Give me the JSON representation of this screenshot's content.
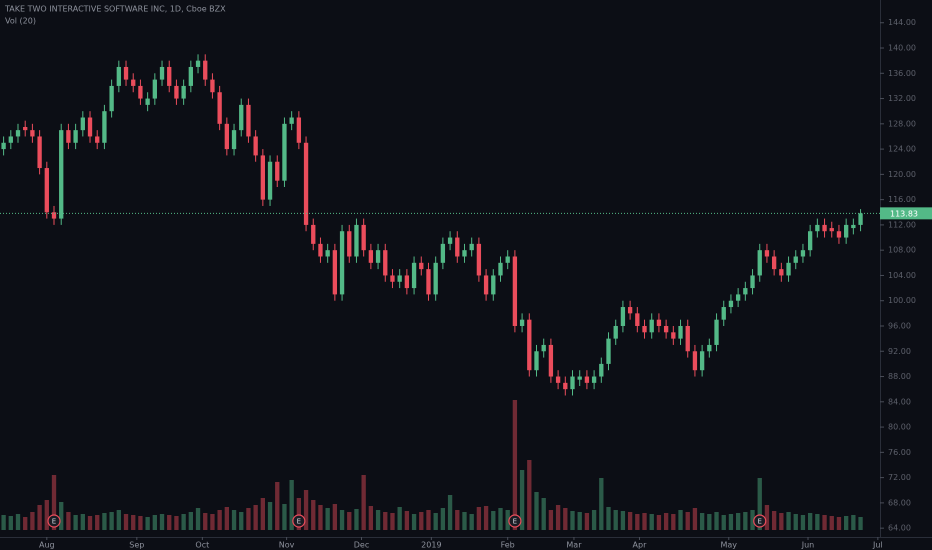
{
  "chart_data": {
    "type": "candlestick",
    "title": "TAKE TWO INTERACTIVE SOFTWARE INC, 1D, Cboe BZX",
    "volume_label": "Vol (20)",
    "up_color": "#53b987",
    "down_color": "#eb4d5c",
    "x": [
      0,
      1,
      2,
      3,
      4,
      5,
      6,
      7,
      8,
      9,
      10,
      11,
      12,
      13,
      14,
      15,
      16,
      17,
      18,
      19,
      20,
      21,
      22,
      23,
      24,
      25,
      26,
      27,
      28,
      29,
      30,
      31,
      32,
      33,
      34,
      35,
      36,
      37,
      38,
      39,
      40,
      41,
      42,
      43,
      44,
      45,
      46,
      47,
      48,
      49,
      50,
      51,
      52,
      53,
      54,
      55,
      56,
      57,
      58,
      59,
      60,
      61,
      62,
      63,
      64,
      65,
      66,
      67,
      68,
      69,
      70,
      71,
      72,
      73,
      74,
      75,
      76,
      77,
      78,
      79,
      80,
      81,
      82,
      83,
      84,
      85,
      86,
      87,
      88,
      89,
      90,
      91,
      92,
      93,
      94,
      95,
      96,
      97,
      98,
      99,
      100,
      101,
      102,
      103,
      104,
      105,
      106,
      107,
      108,
      109,
      110,
      111,
      112,
      113,
      114,
      115,
      116,
      117,
      118,
      119
    ],
    "open": [
      124,
      125,
      126,
      127.5,
      127,
      126,
      121,
      114,
      113,
      127,
      125,
      127,
      129,
      126,
      125,
      130,
      134,
      137,
      135,
      134,
      131,
      132,
      135,
      137,
      134,
      132,
      134,
      137,
      138,
      135,
      133,
      128,
      124,
      127,
      131,
      126,
      123,
      116,
      122,
      119,
      128,
      129,
      125,
      112,
      109,
      107,
      108,
      101,
      111,
      107,
      112,
      108,
      106,
      108,
      104,
      103,
      104,
      102,
      106,
      105,
      101,
      106,
      109,
      110,
      107,
      108,
      109,
      104,
      101,
      104,
      106,
      107,
      96,
      97,
      89,
      92,
      93,
      88,
      87,
      86,
      87.5,
      88,
      87,
      88,
      90,
      94,
      96,
      99,
      98,
      96,
      95,
      97,
      96,
      95,
      94,
      96,
      92,
      89,
      92,
      93,
      97,
      99,
      100,
      101,
      102,
      104,
      108,
      107,
      105,
      104,
      106,
      107,
      108,
      111,
      112,
      111.5,
      111,
      110,
      111.5,
      112
    ],
    "high": [
      126,
      127,
      128,
      128.5,
      128,
      127,
      122,
      115,
      128,
      128,
      128,
      130,
      130,
      127,
      131,
      135,
      138,
      138,
      136,
      135,
      133,
      136,
      138,
      138,
      135,
      135,
      138,
      139,
      139,
      136,
      134,
      129,
      128,
      132,
      132,
      127,
      124,
      123,
      123,
      129,
      130,
      130,
      126,
      113,
      110,
      109,
      109,
      112,
      112,
      113,
      113,
      109,
      109,
      109,
      105,
      105,
      105,
      107,
      107,
      106,
      107,
      110,
      111,
      111,
      109,
      110,
      110,
      105,
      105,
      107,
      108,
      108,
      98,
      98,
      93,
      94,
      94,
      89,
      88,
      89,
      89,
      89,
      89,
      91,
      95,
      97,
      100,
      100,
      99,
      97,
      98,
      98,
      97,
      96,
      97,
      97,
      93,
      93,
      94,
      98,
      100,
      101,
      102,
      103,
      105,
      109,
      109,
      108,
      106,
      107,
      108,
      109,
      112,
      113,
      113,
      112.5,
      112,
      113,
      113,
      114.5
    ],
    "low": [
      123,
      124,
      125,
      126,
      125,
      120,
      113,
      112,
      112,
      124,
      124,
      126,
      125,
      124,
      124,
      129,
      133,
      134,
      133,
      131,
      130,
      131,
      134,
      133,
      131,
      131,
      133,
      136,
      134,
      132,
      127,
      123,
      123,
      126,
      125,
      122,
      115,
      115,
      118,
      118,
      127,
      124,
      111,
      108,
      106,
      106,
      100,
      100,
      106,
      106,
      107,
      105,
      105,
      103,
      102,
      102,
      101,
      101,
      104,
      100,
      100,
      105,
      108,
      106,
      106,
      107,
      103,
      100,
      100,
      103,
      105,
      95,
      95,
      88,
      88,
      91,
      87,
      86,
      85,
      85,
      86.5,
      86,
      86,
      87,
      89,
      93,
      95,
      97,
      95,
      94,
      94,
      95,
      94,
      93,
      93,
      91,
      88,
      88,
      91,
      92,
      96,
      98,
      99,
      100,
      101,
      103,
      106,
      104,
      103,
      103,
      105,
      106,
      107,
      110,
      110,
      110,
      109,
      109,
      110.5,
      111
    ],
    "close": [
      125,
      126,
      127,
      127,
      126,
      121,
      114,
      113,
      127,
      125,
      127,
      129,
      126,
      125,
      130,
      134,
      137,
      135,
      134,
      132,
      132,
      135,
      137,
      134,
      132,
      134,
      137,
      138,
      135,
      133,
      128,
      124,
      127,
      131,
      126,
      123,
      116,
      122,
      119,
      128,
      129,
      125,
      112,
      109,
      107,
      108,
      101,
      111,
      107,
      112,
      108,
      106,
      108,
      104,
      103,
      104,
      102,
      106,
      105,
      101,
      106,
      109,
      110,
      107,
      108,
      109,
      104,
      101,
      104,
      106,
      107,
      96,
      97,
      89,
      92,
      93,
      88,
      87,
      86,
      88,
      88,
      87,
      88,
      90,
      94,
      96,
      99,
      98,
      96,
      95,
      97,
      96,
      95,
      94,
      96,
      92,
      89,
      92,
      93,
      97,
      99,
      100,
      101,
      102,
      104,
      108,
      107,
      105,
      104,
      106,
      107,
      108,
      111,
      112,
      111,
      111,
      110,
      112,
      112,
      113.83
    ],
    "volume": [
      1.5,
      1.4,
      1.6,
      1.3,
      1.8,
      2.5,
      3.0,
      5.5,
      2.8,
      1.8,
      1.5,
      1.6,
      1.4,
      1.5,
      1.7,
      1.8,
      2.0,
      1.6,
      1.5,
      1.4,
      1.3,
      1.5,
      1.6,
      1.5,
      1.4,
      1.6,
      1.8,
      2.2,
      1.7,
      1.6,
      2.0,
      2.3,
      2.0,
      1.8,
      2.2,
      2.5,
      3.2,
      2.8,
      4.8,
      2.6,
      5.0,
      3.2,
      4.0,
      3.0,
      2.5,
      2.2,
      2.6,
      2.0,
      1.8,
      2.1,
      5.5,
      2.4,
      2.0,
      1.8,
      1.7,
      2.3,
      1.9,
      1.6,
      1.8,
      2.0,
      1.7,
      2.2,
      3.5,
      2.0,
      1.8,
      1.6,
      2.3,
      2.4,
      1.9,
      2.2,
      2.0,
      13.0,
      6.0,
      7.0,
      3.8,
      3.2,
      2.0,
      2.5,
      2.2,
      1.9,
      1.8,
      1.7,
      2.0,
      5.2,
      2.3,
      2.0,
      1.9,
      1.8,
      1.6,
      1.7,
      1.6,
      1.5,
      1.7,
      1.6,
      2.0,
      1.8,
      2.2,
      1.7,
      1.6,
      1.8,
      1.5,
      1.6,
      1.7,
      1.8,
      2.0,
      5.2,
      2.5,
      1.9,
      1.7,
      1.8,
      1.6,
      1.5,
      1.7,
      1.6,
      1.5,
      1.4,
      1.3,
      1.4,
      1.5,
      1.3
    ],
    "earnings": [
      {
        "index": 7,
        "label": "E"
      },
      {
        "index": 41,
        "label": "E"
      },
      {
        "index": 71,
        "label": "E"
      },
      {
        "index": 105,
        "label": "E"
      }
    ],
    "last_price": 113.83,
    "xlim": [
      -0.5,
      121.7
    ],
    "xticks": [
      {
        "value": 6.0,
        "label": "Aug"
      },
      {
        "value": 18.5,
        "label": "Sep"
      },
      {
        "value": 27.6,
        "label": "Oct"
      },
      {
        "value": 39.3,
        "label": "Nov"
      },
      {
        "value": 49.7,
        "label": "Dec"
      },
      {
        "value": 59.4,
        "label": "2019"
      },
      {
        "value": 70.0,
        "label": "Feb"
      },
      {
        "value": 79.2,
        "label": "Mar"
      },
      {
        "value": 88.3,
        "label": "Apr"
      },
      {
        "value": 100.7,
        "label": "May"
      },
      {
        "value": 111.7,
        "label": "Jun"
      },
      {
        "value": 121.4,
        "label": "Jul"
      }
    ],
    "ylim": [
      62.6,
      147.6
    ],
    "yticks": [
      {
        "value": 64,
        "label": "64.00"
      },
      {
        "value": 68,
        "label": "68.00"
      },
      {
        "value": 72,
        "label": "72.00"
      },
      {
        "value": 76,
        "label": "76.00"
      },
      {
        "value": 80,
        "label": "80.00"
      },
      {
        "value": 84,
        "label": "84.00"
      },
      {
        "value": 88,
        "label": "88.00"
      },
      {
        "value": 92,
        "label": "92.00"
      },
      {
        "value": 96,
        "label": "96.00"
      },
      {
        "value": 100,
        "label": "100.00"
      },
      {
        "value": 104,
        "label": "104.00"
      },
      {
        "value": 108,
        "label": "108.00"
      },
      {
        "value": 112,
        "label": "112.00"
      },
      {
        "value": 116,
        "label": "116.00"
      },
      {
        "value": 120,
        "label": "120.00"
      },
      {
        "value": 124,
        "label": "124.00"
      },
      {
        "value": 128,
        "label": "128.00"
      },
      {
        "value": 132,
        "label": "132.00"
      },
      {
        "value": 136,
        "label": "136.00"
      },
      {
        "value": 140,
        "label": "140.00"
      },
      {
        "value": 144,
        "label": "144.00"
      }
    ],
    "y2lim": [
      0,
      40
    ]
  }
}
